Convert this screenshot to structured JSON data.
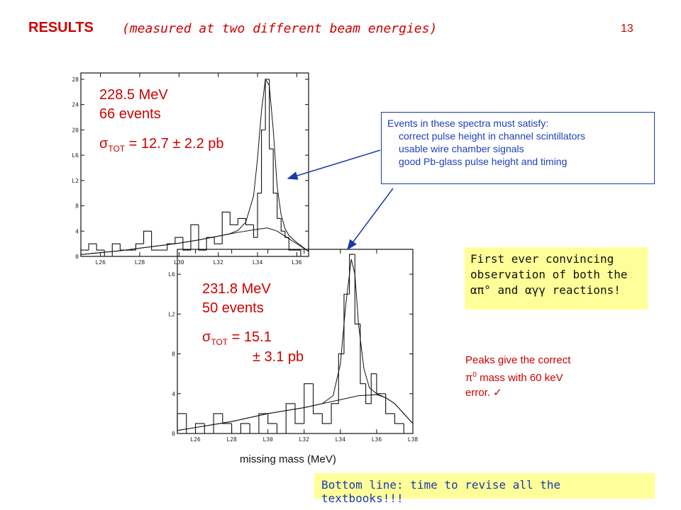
{
  "header": {
    "title": "RESULTS",
    "subtitle": "(measured at two different beam energies)",
    "page_number": "13"
  },
  "plot_top": {
    "energy": "228.5 MeV",
    "events": "66 events",
    "sigma_symbol": "σ",
    "sigma_sub": "TOT",
    "sigma_value": " = 12.7 ± 2.2 pb"
  },
  "plot_bottom": {
    "energy": "231.8 MeV",
    "events": "50 events",
    "sigma_symbol": "σ",
    "sigma_sub": "TOT",
    "sigma_value_1": " = 15.1",
    "sigma_value_2": "± 3.1 pb"
  },
  "criteria_box": {
    "heading": "Events in these spectra must satisfy:",
    "items": [
      "correct pulse height in channel scintillators",
      "usable wire chamber signals",
      "good Pb-glass pulse height and timing"
    ]
  },
  "first_box": {
    "line1": "First ever convincing",
    "line2": "observation of both the",
    "line3": "απ° and αγγ reactions!"
  },
  "peaks_note": {
    "line1": "Peaks give the correct",
    "line2_pre": "π",
    "line2_sup": "0",
    "line2_post": " mass with 60 keV",
    "line3": "error.  ✓"
  },
  "x_axis_label": "missing mass  (MeV)",
  "bottom_line": "Bottom line:  time to revise all the textbooks!!!",
  "colors": {
    "accent_red": "#cc0000",
    "blue": "#1a3aa8",
    "highlight_yellow": "#ffff99"
  },
  "chart_data": [
    {
      "type": "histogram",
      "x_unit": "MeV",
      "xlim": [
        125,
        136.6
      ],
      "ylim": [
        0,
        29
      ],
      "x_ticks": [
        "L26",
        "L28",
        "L30",
        "L32",
        "L34",
        "L36"
      ],
      "x_tick_values": [
        126,
        128,
        130,
        132,
        134,
        136
      ],
      "y_ticks": [
        "0",
        "4",
        "8",
        "L2",
        "L6",
        "20",
        "24",
        "28"
      ],
      "y_tick_values": [
        0,
        4,
        8,
        12,
        16,
        20,
        24,
        28
      ],
      "bin_edges": [
        125.0,
        125.4,
        125.8,
        126.2,
        126.6,
        127.0,
        127.4,
        127.8,
        128.2,
        128.6,
        129.0,
        129.4,
        129.8,
        130.2,
        130.6,
        131.0,
        131.4,
        131.8,
        132.2,
        132.6,
        133.0,
        133.4,
        133.8,
        134.0,
        134.2,
        134.4,
        134.6,
        134.8,
        135.0,
        135.2,
        135.4,
        135.6,
        135.8,
        136.2,
        136.6
      ],
      "counts": [
        1,
        2,
        1,
        0,
        2,
        1,
        1,
        2,
        4,
        1,
        1,
        2,
        3,
        1,
        5,
        1,
        3,
        2,
        7,
        5,
        6,
        5,
        3,
        10,
        20,
        28,
        17,
        10,
        6,
        4,
        3,
        1,
        1,
        0
      ],
      "fit_curve": {
        "x": [
          125.0,
          126.0,
          127.0,
          128.0,
          129.0,
          130.0,
          131.0,
          132.0,
          132.6,
          133.0,
          133.4,
          133.8,
          134.0,
          134.2,
          134.4,
          134.6,
          134.8,
          135.0,
          135.2,
          135.4,
          135.6,
          136.0,
          136.6
        ],
        "y": [
          0.3,
          0.6,
          0.9,
          1.3,
          1.7,
          2.1,
          2.6,
          3.2,
          3.6,
          4.1,
          5.4,
          9.6,
          15.5,
          23.0,
          28.0,
          27.0,
          20.0,
          11.0,
          6.6,
          4.4,
          3.3,
          2.2,
          0.8
        ]
      },
      "background_curve": {
        "x": [
          125.0,
          126.0,
          127.0,
          128.0,
          129.0,
          130.0,
          131.0,
          132.0,
          133.0,
          134.0,
          134.5,
          135.0,
          135.5,
          136.0,
          136.6
        ],
        "y": [
          0.3,
          0.6,
          0.9,
          1.3,
          1.7,
          2.1,
          2.6,
          3.2,
          3.8,
          4.3,
          4.5,
          4.0,
          3.0,
          2.0,
          0.8
        ]
      }
    },
    {
      "type": "histogram",
      "x_unit": "MeV",
      "xlabel": "missing mass  (MeV)",
      "xlim": [
        125,
        138
      ],
      "ylim": [
        0,
        18.5
      ],
      "x_ticks": [
        "L26",
        "L28",
        "L30",
        "L32",
        "L34",
        "L36",
        "L38"
      ],
      "x_tick_values": [
        126,
        128,
        130,
        132,
        134,
        136,
        138
      ],
      "y_ticks": [
        "0",
        "4",
        "8",
        "L2",
        "L6"
      ],
      "y_tick_values": [
        0,
        4,
        8,
        12,
        16
      ],
      "bin_edges": [
        125.0,
        125.5,
        126.0,
        126.5,
        127.0,
        127.5,
        128.0,
        128.5,
        129.0,
        129.5,
        130.0,
        130.5,
        131.0,
        131.5,
        132.0,
        132.5,
        133.0,
        133.5,
        133.9,
        134.2,
        134.5,
        134.8,
        135.1,
        135.4,
        135.7,
        136.0,
        136.5,
        137.0,
        137.5,
        138.0
      ],
      "counts": [
        2,
        0,
        1,
        0,
        2,
        1,
        0,
        1,
        0,
        2,
        1,
        0,
        3,
        1,
        5,
        2,
        1,
        3,
        8,
        14,
        18,
        11,
        5,
        3,
        6,
        4,
        2,
        1,
        0
      ],
      "fit_curve": {
        "x": [
          125.0,
          126.0,
          127.0,
          128.0,
          129.0,
          130.0,
          131.0,
          132.0,
          133.0,
          133.6,
          134.0,
          134.3,
          134.6,
          134.8,
          135.0,
          135.3,
          135.6,
          136.0,
          136.5,
          137.0,
          137.5,
          138.0
        ],
        "y": [
          0.3,
          0.6,
          0.9,
          1.2,
          1.6,
          2.0,
          2.3,
          2.6,
          3.0,
          3.8,
          7.0,
          13.0,
          17.5,
          16.0,
          11.0,
          6.5,
          4.6,
          4.0,
          3.6,
          3.0,
          2.0,
          1.0
        ]
      },
      "background_curve": {
        "x": [
          125.0,
          126.0,
          127.0,
          128.0,
          129.0,
          130.0,
          131.0,
          132.0,
          133.0,
          134.0,
          135.0,
          136.0,
          136.5,
          137.0,
          137.5,
          138.0
        ],
        "y": [
          0.3,
          0.6,
          0.9,
          1.2,
          1.6,
          2.0,
          2.3,
          2.6,
          3.0,
          3.4,
          3.8,
          3.9,
          3.6,
          3.0,
          2.0,
          1.0
        ]
      }
    }
  ]
}
